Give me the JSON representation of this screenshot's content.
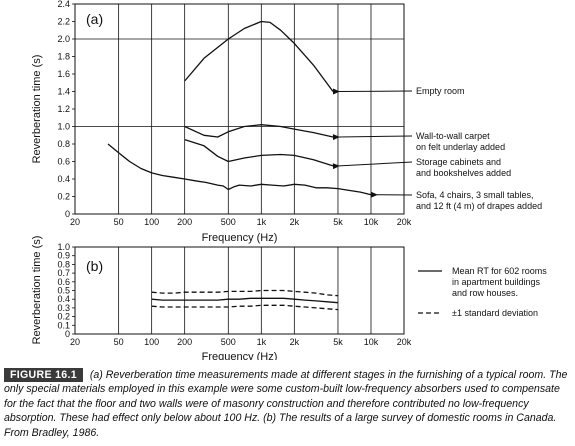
{
  "chart_data": [
    {
      "type": "line",
      "panel_label": "(a)",
      "xlabel": "Frequency (Hz)",
      "ylabel": "Reverberation time (s)",
      "xscale": "log",
      "xlim": [
        20,
        20000
      ],
      "ylim": [
        0,
        2.4
      ],
      "x_ticks": [
        20,
        50,
        100,
        200,
        500,
        1000,
        2000,
        5000,
        10000,
        20000
      ],
      "x_tick_labels": [
        "20",
        "50",
        "100",
        "200",
        "500",
        "1k",
        "2k",
        "5k",
        "10k",
        "20k"
      ],
      "y_ticks": [
        0,
        0.2,
        0.4,
        0.6,
        0.8,
        1.0,
        1.2,
        1.4,
        1.6,
        1.8,
        2.0,
        2.2,
        2.4
      ],
      "y_tick_labels": [
        "0",
        "0.2",
        "0.4",
        "0.6",
        "0.8",
        "1.0",
        "1.2",
        "1.4",
        "1.6",
        "1.8",
        "2.0",
        "2.2",
        "2.4"
      ],
      "grid": "major lines at 1.0 and 2.0 s",
      "series": [
        {
          "name": "Empty room",
          "x": [
            200,
            300,
            500,
            700,
            1000,
            1200,
            1500,
            2000,
            3000,
            4500
          ],
          "y": [
            1.52,
            1.78,
            2.0,
            2.12,
            2.2,
            2.19,
            2.1,
            1.95,
            1.7,
            1.4
          ]
        },
        {
          "name": "Wall-to-wall carpet on felt underlay added",
          "x": [
            200,
            300,
            400,
            500,
            700,
            1000,
            1500,
            2000,
            3000,
            4500
          ],
          "y": [
            1.0,
            0.9,
            0.88,
            0.94,
            1.0,
            1.02,
            1.0,
            0.97,
            0.93,
            0.88
          ]
        },
        {
          "name": "Storage cabinets and and bookshelves added",
          "x": [
            200,
            300,
            400,
            500,
            700,
            1000,
            1500,
            2000,
            3000,
            4500
          ],
          "y": [
            0.85,
            0.78,
            0.66,
            0.6,
            0.64,
            0.67,
            0.68,
            0.67,
            0.62,
            0.55
          ]
        },
        {
          "name": "Sofa, 4 chairs, 3 small tables, and 12 ft (4 m) of drapes added",
          "x": [
            40,
            50,
            63,
            80,
            100,
            125,
            160,
            200,
            250,
            315,
            400,
            450,
            500,
            560,
            630,
            800,
            1000,
            1250,
            1600,
            2000,
            2500,
            3150,
            4000,
            5000,
            6300,
            8000,
            10000
          ],
          "y": [
            0.8,
            0.7,
            0.6,
            0.52,
            0.47,
            0.44,
            0.42,
            0.4,
            0.38,
            0.36,
            0.33,
            0.32,
            0.28,
            0.31,
            0.33,
            0.32,
            0.34,
            0.33,
            0.32,
            0.34,
            0.33,
            0.3,
            0.3,
            0.29,
            0.27,
            0.25,
            0.22
          ]
        }
      ],
      "annotations": [
        {
          "lines": [
            "Empty room"
          ],
          "target": [
            4500,
            1.4
          ]
        },
        {
          "lines": [
            "Wall-to-wall carpet",
            "on felt underlay added"
          ],
          "target": [
            4500,
            0.88
          ]
        },
        {
          "lines": [
            "Storage cabinets and",
            "and bookshelves added"
          ],
          "target": [
            4500,
            0.55
          ]
        },
        {
          "lines": [
            "Sofa, 4 chairs, 3 small tables,",
            "and 12 ft (4 m) of drapes added"
          ],
          "target": [
            10000,
            0.22
          ]
        }
      ]
    },
    {
      "type": "line",
      "panel_label": "(b)",
      "xlabel": "Frequency (Hz)",
      "ylabel": "Reverberation time (s)",
      "xscale": "log",
      "xlim": [
        20,
        20000
      ],
      "ylim": [
        0,
        1.0
      ],
      "x_ticks": [
        20,
        50,
        100,
        200,
        500,
        1000,
        2000,
        5000,
        10000,
        20000
      ],
      "x_tick_labels": [
        "20",
        "50",
        "100",
        "200",
        "500",
        "1k",
        "2k",
        "5k",
        "10k",
        "20k"
      ],
      "y_ticks": [
        0,
        0.1,
        0.2,
        0.3,
        0.4,
        0.5,
        0.6,
        0.7,
        0.8,
        0.9,
        1.0
      ],
      "y_tick_labels": [
        "0",
        "0.1",
        "0.2",
        "0.3",
        "0.4",
        "0.5",
        "0.6",
        "0.7",
        "0.8",
        "0.9",
        "1.0"
      ],
      "series": [
        {
          "name": "Mean RT for 602 rooms in apartment buildings and row houses.",
          "style": "solid",
          "x": [
            100,
            125,
            160,
            200,
            250,
            315,
            400,
            500,
            630,
            800,
            1000,
            1250,
            1600,
            2000,
            2500,
            3150,
            4000,
            5000
          ],
          "y": [
            0.4,
            0.39,
            0.39,
            0.39,
            0.39,
            0.39,
            0.39,
            0.4,
            0.4,
            0.41,
            0.41,
            0.41,
            0.41,
            0.4,
            0.39,
            0.38,
            0.37,
            0.36
          ]
        },
        {
          "name": "±1 standard deviation",
          "style": "dashed",
          "x": [
            100,
            125,
            160,
            200,
            250,
            315,
            400,
            500,
            630,
            800,
            1000,
            1250,
            1600,
            2000,
            2500,
            3150,
            4000,
            5000
          ],
          "y": [
            0.48,
            0.47,
            0.47,
            0.48,
            0.48,
            0.48,
            0.48,
            0.49,
            0.49,
            0.49,
            0.5,
            0.5,
            0.5,
            0.49,
            0.48,
            0.47,
            0.45,
            0.44
          ]
        },
        {
          "name": "",
          "style": "dashed",
          "x": [
            100,
            125,
            160,
            200,
            250,
            315,
            400,
            500,
            630,
            800,
            1000,
            1250,
            1600,
            2000,
            2500,
            3150,
            4000,
            5000
          ],
          "y": [
            0.32,
            0.31,
            0.31,
            0.31,
            0.31,
            0.31,
            0.31,
            0.31,
            0.32,
            0.32,
            0.33,
            0.33,
            0.33,
            0.32,
            0.31,
            0.3,
            0.29,
            0.28
          ]
        }
      ],
      "legend": [
        {
          "style": "solid",
          "lines": [
            "Mean RT for 602 rooms",
            "in apartment buildings",
            "and row houses."
          ]
        },
        {
          "style": "dashed",
          "lines": [
            "±1 standard deviation"
          ]
        }
      ]
    }
  ],
  "caption": {
    "label": "FIGURE 16.1",
    "text": "(a) Reverberation time measurements made at different stages in the furnishing of a typical room. The only special materials employed in this example were some custom-built low-frequency absorbers used to compensate for the fact that the floor and two walls were of masonry construction and therefore contributed no low-frequency absorption. These had effect only below about 100 Hz. (b) The results of a large survey of domestic rooms in Canada. From Bradley, 1986."
  },
  "colors": {
    "line": "#111111",
    "badge_bg": "#3a3a3a",
    "badge_text": "#ffffff"
  }
}
